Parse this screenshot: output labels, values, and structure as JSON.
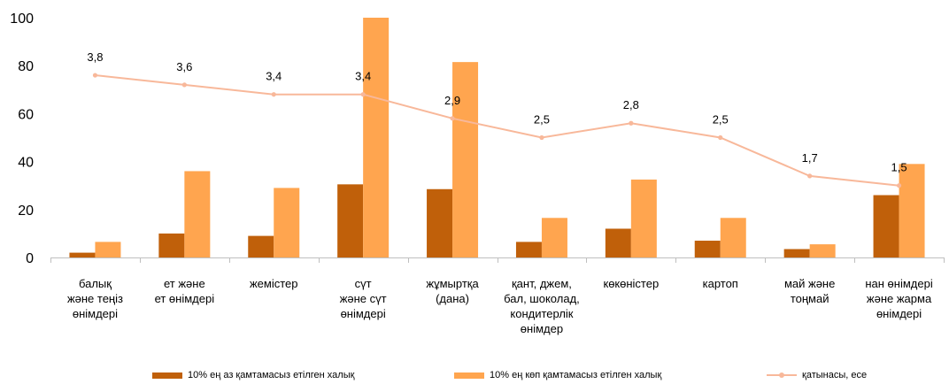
{
  "chart_data": {
    "type": "bar+line",
    "categories": [
      [
        "балық",
        "және теңіз",
        "өнімдері"
      ],
      [
        "ет және",
        "ет өнімдері"
      ],
      [
        "жемістер"
      ],
      [
        "сүт",
        "және сүт",
        "өнімдері"
      ],
      [
        "жұмыртқа",
        "(дана)"
      ],
      [
        "қант, джем,",
        "бал, шоколад,",
        "кондитерлік",
        "өнімдер"
      ],
      [
        "көкөністер"
      ],
      [
        "картоп"
      ],
      [
        "май және",
        "тоңмай"
      ],
      [
        "нан өнімдері",
        "және жарма",
        "өнімдері"
      ]
    ],
    "series": [
      {
        "name": "10% ең аз қамтамасыз етілген халық",
        "kind": "bar",
        "color": "#C0600A",
        "values": [
          2,
          10,
          9,
          30.5,
          28.5,
          6.5,
          12,
          7,
          3.5,
          26
        ]
      },
      {
        "name": "10% ең көп қамтамасыз етілген халық",
        "kind": "bar",
        "color": "#FFA54F",
        "values": [
          6.5,
          36,
          29,
          100,
          81.5,
          16.5,
          32.5,
          16.5,
          5.5,
          39
        ]
      },
      {
        "name": "қатынасы, есе",
        "kind": "line",
        "color": "#F8B89A",
        "values": [
          3.8,
          3.6,
          3.4,
          3.4,
          2.9,
          2.5,
          2.8,
          2.5,
          1.7,
          1.5
        ],
        "labels": [
          "3,8",
          "3,6",
          "3,4",
          "3,4",
          "2,9",
          "2,5",
          "2,8",
          "2,5",
          "1,7",
          "1,5"
        ]
      }
    ],
    "yticks": [
      "0",
      "20",
      "40",
      "60",
      "80",
      "100"
    ],
    "ylim": [
      0,
      100
    ],
    "legend_position": "bottom",
    "grid": false
  }
}
